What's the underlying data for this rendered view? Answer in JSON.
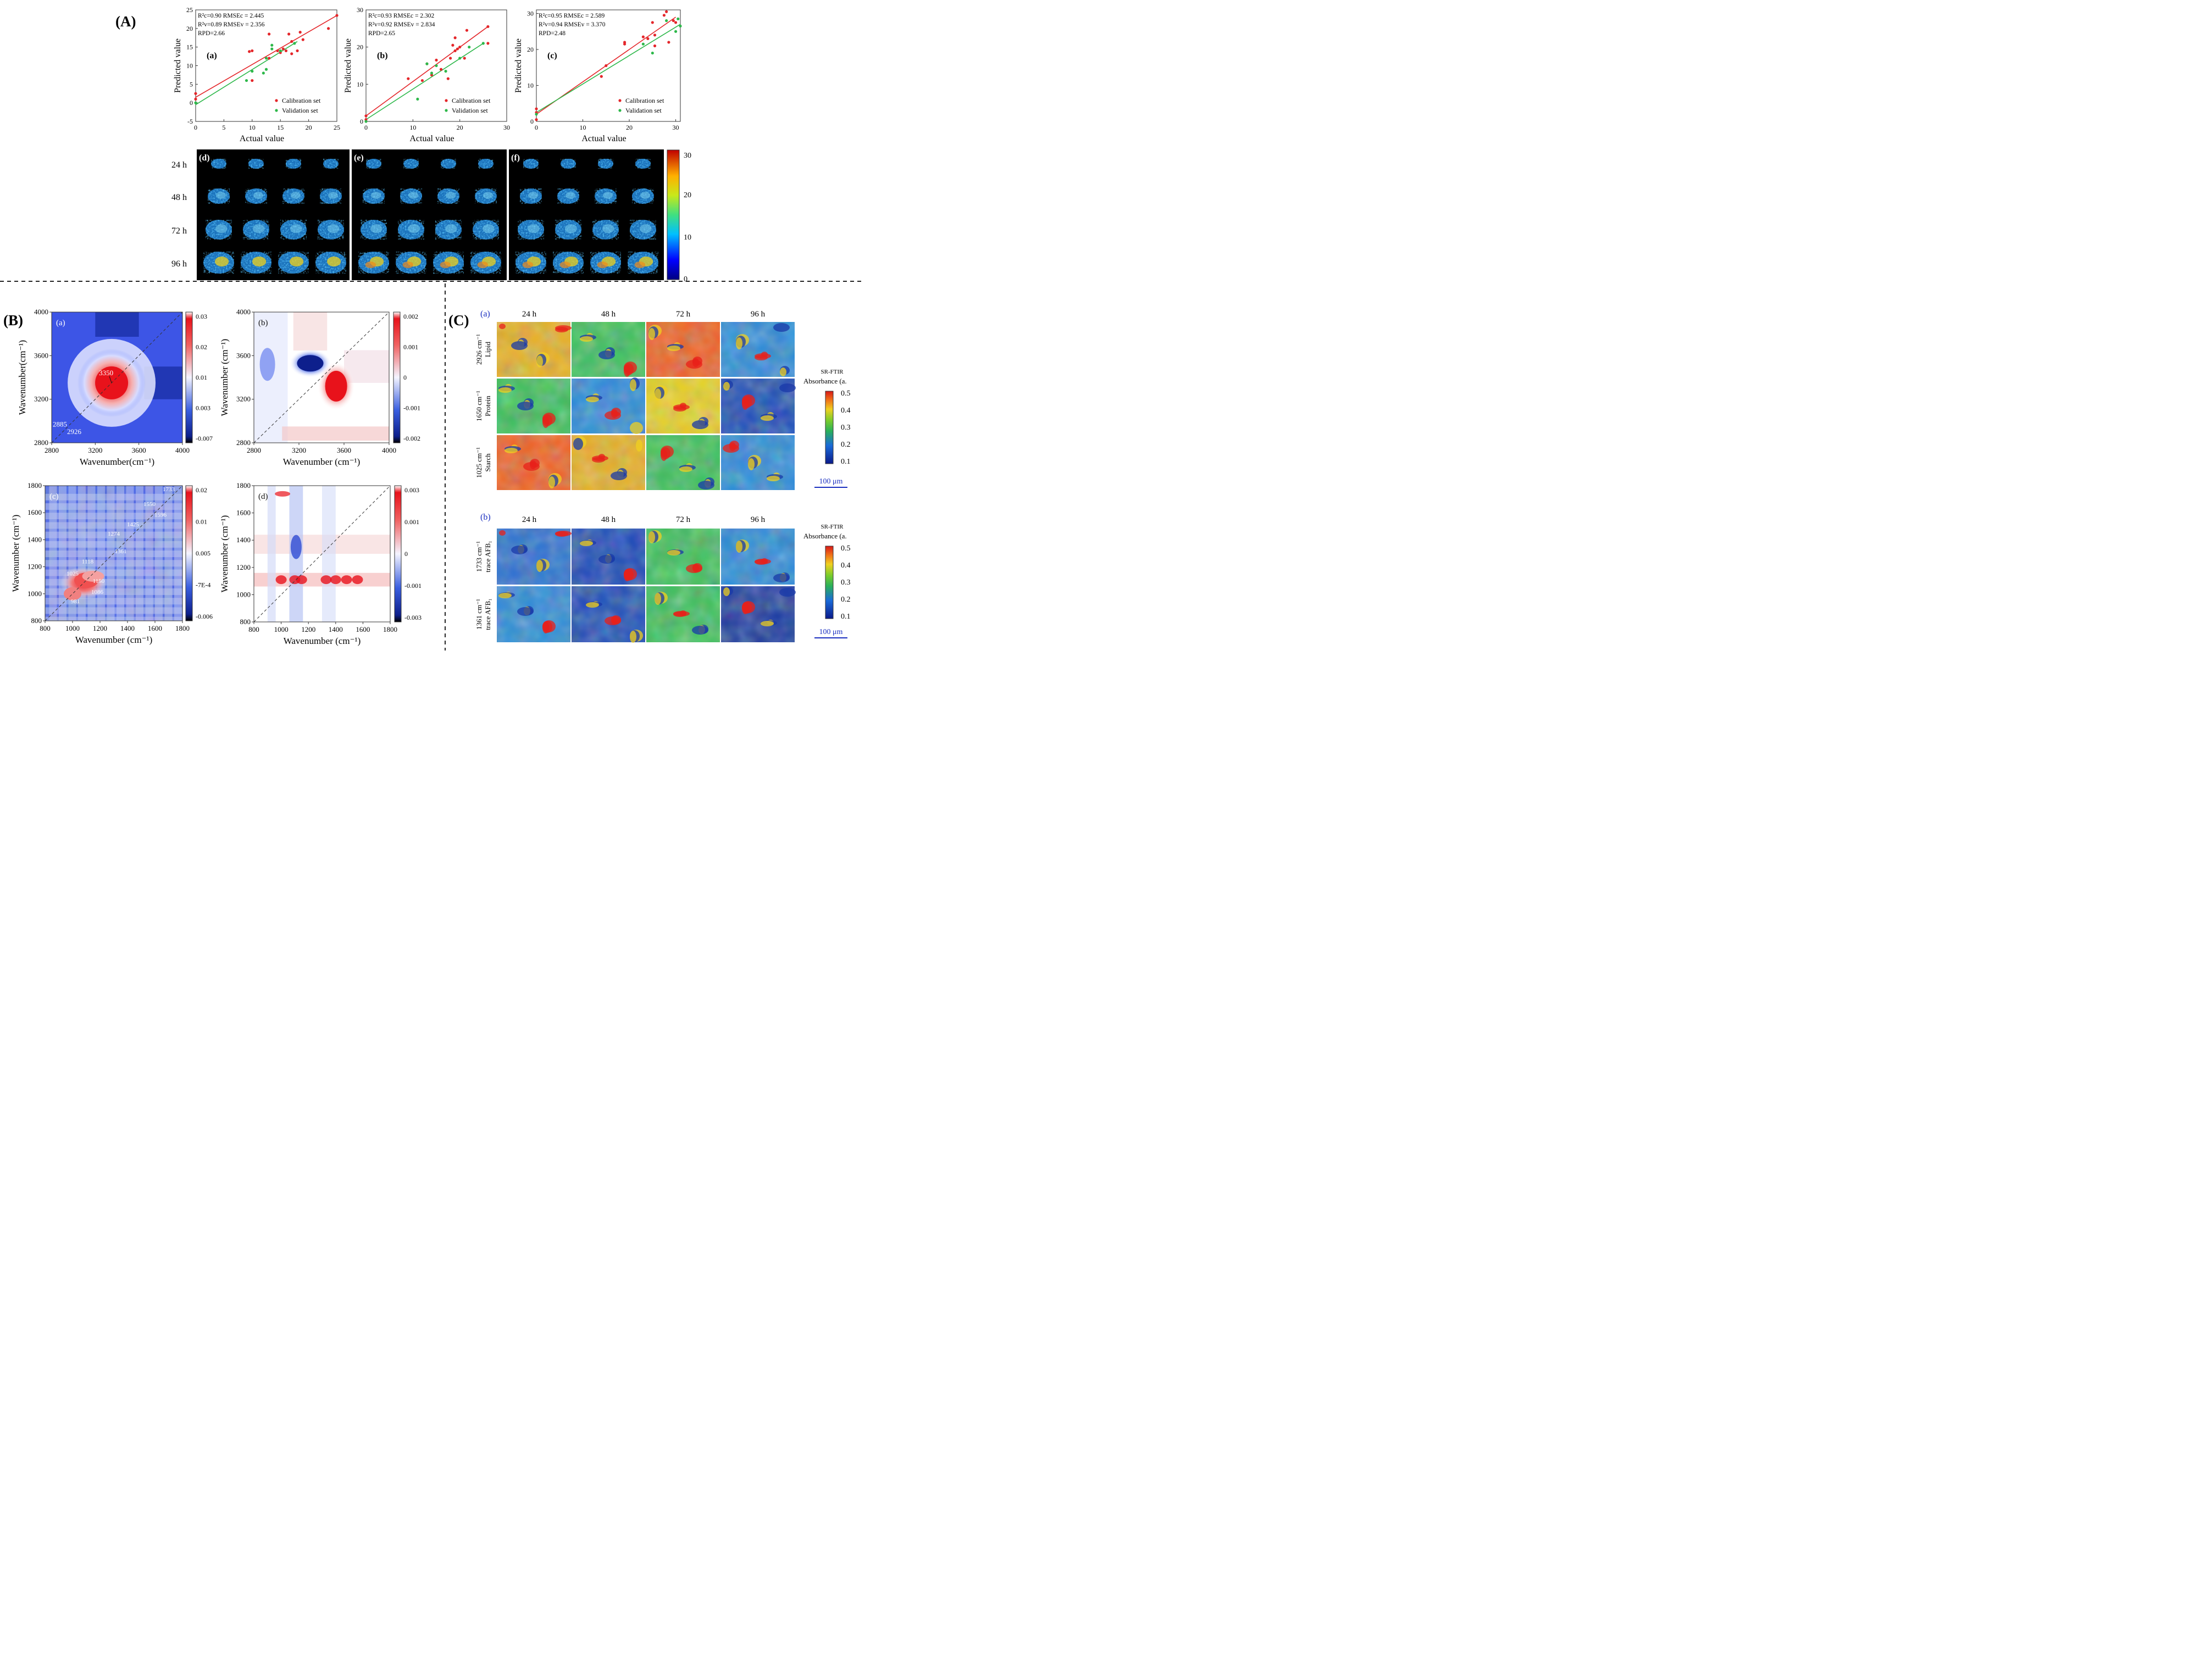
{
  "panel_labels": {
    "A": "(A)",
    "B": "(B)",
    "C": "(C)"
  },
  "colors": {
    "calibration": "#e4262a",
    "validation": "#2db84a",
    "heat_low": "#0d1f8c",
    "heat_high": "#e8121b"
  },
  "chart_data": [
    {
      "type": "scatter",
      "panel": "(a)",
      "xlabel": "Actual value",
      "ylabel": "Predicted value",
      "xlim": [
        0,
        25
      ],
      "ylim": [
        -5,
        25
      ],
      "xticks": [
        "0",
        "5",
        "10",
        "15",
        "20",
        "25"
      ],
      "yticks": [
        "-5",
        "0",
        "5",
        "10",
        "15",
        "20",
        "25"
      ],
      "stats": [
        "R²c=0.90  RMSEc = 2.445",
        "R²v=0.89  RMSEv = 2.356",
        "RPD=2.66"
      ],
      "legend": [
        "Calibration set",
        "Validation set"
      ],
      "series": [
        {
          "name": "Calibration set",
          "points": [
            [
              0,
              2.5
            ],
            [
              0,
              1.0
            ],
            [
              9.5,
              13.8
            ],
            [
              10,
              14
            ],
            [
              10,
              6
            ],
            [
              13,
              18.5
            ],
            [
              13,
              12
            ],
            [
              14.5,
              14
            ],
            [
              15,
              13.5
            ],
            [
              15.5,
              14.5
            ],
            [
              16,
              14
            ],
            [
              16.5,
              18.5
            ],
            [
              17,
              16.5
            ],
            [
              17,
              13.2
            ],
            [
              18,
              14
            ],
            [
              18.5,
              19
            ],
            [
              19,
              17
            ],
            [
              23.5,
              20
            ],
            [
              25,
              23.5
            ]
          ],
          "fit": [
            [
              0,
              1.5
            ],
            [
              25,
              23.5
            ]
          ]
        },
        {
          "name": "Validation set",
          "points": [
            [
              0,
              0
            ],
            [
              9,
              6
            ],
            [
              10,
              8.5
            ],
            [
              12,
              8
            ],
            [
              12.5,
              9
            ],
            [
              13.5,
              15.5
            ],
            [
              13.5,
              14.5
            ],
            [
              15,
              14
            ],
            [
              17.5,
              16
            ],
            [
              12.5,
              12
            ]
          ],
          "fit": [
            [
              0,
              -0.5
            ],
            [
              18,
              16.5
            ]
          ]
        }
      ]
    },
    {
      "type": "scatter",
      "panel": "(b)",
      "xlabel": "Actual value",
      "ylabel": "Predicted value",
      "xlim": [
        0,
        30
      ],
      "ylim": [
        0,
        30
      ],
      "xticks": [
        "0",
        "10",
        "20",
        "30"
      ],
      "yticks": [
        "0",
        "10",
        "20",
        "30"
      ],
      "stats": [
        "R²c=0.93  RMSEc = 2.302",
        "R²v=0.92  RMSEv = 2.834",
        "RPD=2.65"
      ],
      "legend": [
        "Calibration set",
        "Validation set"
      ],
      "series": [
        {
          "name": "Calibration set",
          "points": [
            [
              0,
              0.5
            ],
            [
              0,
              1.5
            ],
            [
              9,
              11.5
            ],
            [
              12,
              11
            ],
            [
              13,
              15.5
            ],
            [
              14,
              12.5
            ],
            [
              15,
              16.5
            ],
            [
              16,
              14
            ],
            [
              17.5,
              11.5
            ],
            [
              18,
              17
            ],
            [
              18.5,
              20.5
            ],
            [
              19,
              22.5
            ],
            [
              19,
              19
            ],
            [
              19.5,
              19.5
            ],
            [
              20,
              20
            ],
            [
              21,
              17
            ],
            [
              21.5,
              24.5
            ],
            [
              26,
              25.5
            ],
            [
              26,
              21
            ]
          ],
          "fit": [
            [
              0,
              1.5
            ],
            [
              26,
              25.5
            ]
          ]
        },
        {
          "name": "Validation set",
          "points": [
            [
              0,
              0
            ],
            [
              11,
              6
            ],
            [
              13,
              15.5
            ],
            [
              14,
              13
            ],
            [
              15,
              15
            ],
            [
              17,
              13.5
            ],
            [
              20,
              17
            ],
            [
              22,
              20
            ],
            [
              25,
              21
            ]
          ],
          "fit": [
            [
              0,
              0.5
            ],
            [
              25,
              21
            ]
          ]
        }
      ]
    },
    {
      "type": "scatter",
      "panel": "(c)",
      "xlabel": "Actual value",
      "ylabel": "Predicted value",
      "xlim": [
        0,
        31
      ],
      "ylim": [
        0,
        31
      ],
      "xticks": [
        "0",
        "10",
        "20",
        "30"
      ],
      "yticks": [
        "0",
        "10",
        "20",
        "30"
      ],
      "stats": [
        "R²c=0.95  RMSEc = 2.589",
        "R²v=0.94  RMSEv = 3.370",
        "RPD=2.48"
      ],
      "legend": [
        "Calibration set",
        "Validation set"
      ],
      "series": [
        {
          "name": "Calibration set",
          "points": [
            [
              0,
              0.5
            ],
            [
              0,
              2.5
            ],
            [
              0,
              3.5
            ],
            [
              14,
              12.5
            ],
            [
              15,
              15.5
            ],
            [
              19,
              21.5
            ],
            [
              19,
              22
            ],
            [
              23,
              23.5
            ],
            [
              24,
              23
            ],
            [
              25,
              27.5
            ],
            [
              25.5,
              24
            ],
            [
              25.5,
              21
            ],
            [
              27.5,
              29.5
            ],
            [
              28,
              30.5
            ],
            [
              28.5,
              22
            ],
            [
              29.5,
              28
            ],
            [
              30,
              27.5
            ]
          ],
          "fit": [
            [
              0,
              2
            ],
            [
              30,
              29
            ]
          ]
        },
        {
          "name": "Validation set",
          "points": [
            [
              0,
              2
            ],
            [
              23,
              21.5
            ],
            [
              25,
              19
            ],
            [
              28,
              28
            ],
            [
              30,
              25
            ],
            [
              30.5,
              28.5
            ],
            [
              31,
              26.5
            ]
          ],
          "fit": [
            [
              0,
              2.5
            ],
            [
              31,
              27
            ]
          ]
        }
      ]
    },
    {
      "type": "heatmap",
      "panel_labels": [
        "(d)",
        "(e)",
        "(f)"
      ],
      "rows": [
        "24 h",
        "48 h",
        "72 h",
        "96 h"
      ],
      "colorbar_ticks": [
        "30",
        "20",
        "10",
        "0"
      ],
      "colorbar_range": [
        0,
        30
      ]
    },
    {
      "type": "heatmap",
      "panel": "(a)",
      "xlabel": "Wavenumber(cm⁻¹)",
      "ylabel": "Wavenumber(cm⁻¹)",
      "xlim": [
        2800,
        4000
      ],
      "ylim": [
        2800,
        4000
      ],
      "xticks": [
        "2800",
        "3200",
        "3600",
        "4000"
      ],
      "yticks": [
        "2800",
        "3200",
        "3600",
        "4000"
      ],
      "colorbar_ticks": [
        "0.03",
        "0.02",
        "0.01",
        "0.003",
        "-0.007"
      ],
      "annotations": [
        "3350",
        "2885",
        "2926"
      ]
    },
    {
      "type": "heatmap",
      "panel": "(b)",
      "xlabel": "Wavenumber (cm⁻¹)",
      "ylabel": "Wavenumber (cm⁻¹)",
      "xlim": [
        2800,
        4000
      ],
      "ylim": [
        2800,
        4000
      ],
      "xticks": [
        "2800",
        "3200",
        "3600",
        "4000"
      ],
      "yticks": [
        "2800",
        "3200",
        "3600",
        "4000"
      ],
      "colorbar_ticks": [
        "0.002",
        "0.001",
        "0",
        "-0.001",
        "-0.002"
      ]
    },
    {
      "type": "heatmap",
      "panel": "(c)",
      "xlabel": "Wavenumber (cm⁻¹)",
      "ylabel": "Wavenumber (cm⁻¹)",
      "xlim": [
        800,
        1800
      ],
      "ylim": [
        800,
        1800
      ],
      "xticks": [
        "800",
        "1000",
        "1200",
        "1400",
        "1600",
        "1800"
      ],
      "yticks": [
        "800",
        "1000",
        "1200",
        "1400",
        "1600",
        "1800"
      ],
      "colorbar_ticks": [
        "0.02",
        "0.01",
        "0.005",
        "-7E-4",
        "-0.006"
      ],
      "annotations": [
        "1733",
        "1550",
        "1596",
        "1425",
        "1274",
        "1361",
        "1118",
        "1025",
        "1150",
        "1086",
        "981"
      ]
    },
    {
      "type": "heatmap",
      "panel": "(d)",
      "xlabel": "Wavenumber (cm⁻¹)",
      "ylabel": "Wavenumber (cm⁻¹)",
      "xlim": [
        800,
        1800
      ],
      "ylim": [
        800,
        1800
      ],
      "xticks": [
        "800",
        "1000",
        "1200",
        "1400",
        "1600",
        "1800"
      ],
      "yticks": [
        "800",
        "1000",
        "1200",
        "1400",
        "1600",
        "1800"
      ],
      "colorbar_ticks": [
        "0.003",
        "0.001",
        "0",
        "-0.001",
        "-0.003"
      ]
    },
    {
      "type": "heatmap",
      "panel": "(a)",
      "columns": [
        "24 h",
        "48 h",
        "72 h",
        "96 h"
      ],
      "rows": [
        [
          "2926 cm⁻¹",
          "Lipid"
        ],
        [
          "1650 cm⁻¹",
          "Protein"
        ],
        [
          "1025 cm⁻¹",
          "Starch"
        ]
      ],
      "colorbar_title": [
        "SR-FTIR",
        "Absorbance (a."
      ],
      "colorbar_ticks": [
        "0.5",
        "0.4",
        "0.3",
        "0.2",
        "0.1"
      ],
      "scale_bar": "100 μm"
    },
    {
      "type": "heatmap",
      "panel": "(b)",
      "columns": [
        "24 h",
        "48 h",
        "72 h",
        "96 h"
      ],
      "rows": [
        [
          "1733 cm⁻¹",
          "trace AFB₁"
        ],
        [
          "1361 cm⁻¹",
          "trace AFB₁"
        ]
      ],
      "colorbar_title": [
        "SR-FTIR",
        "Absorbance (a."
      ],
      "colorbar_ticks": [
        "0.5",
        "0.4",
        "0.3",
        "0.2",
        "0.1"
      ],
      "scale_bar": "100 μm"
    }
  ]
}
